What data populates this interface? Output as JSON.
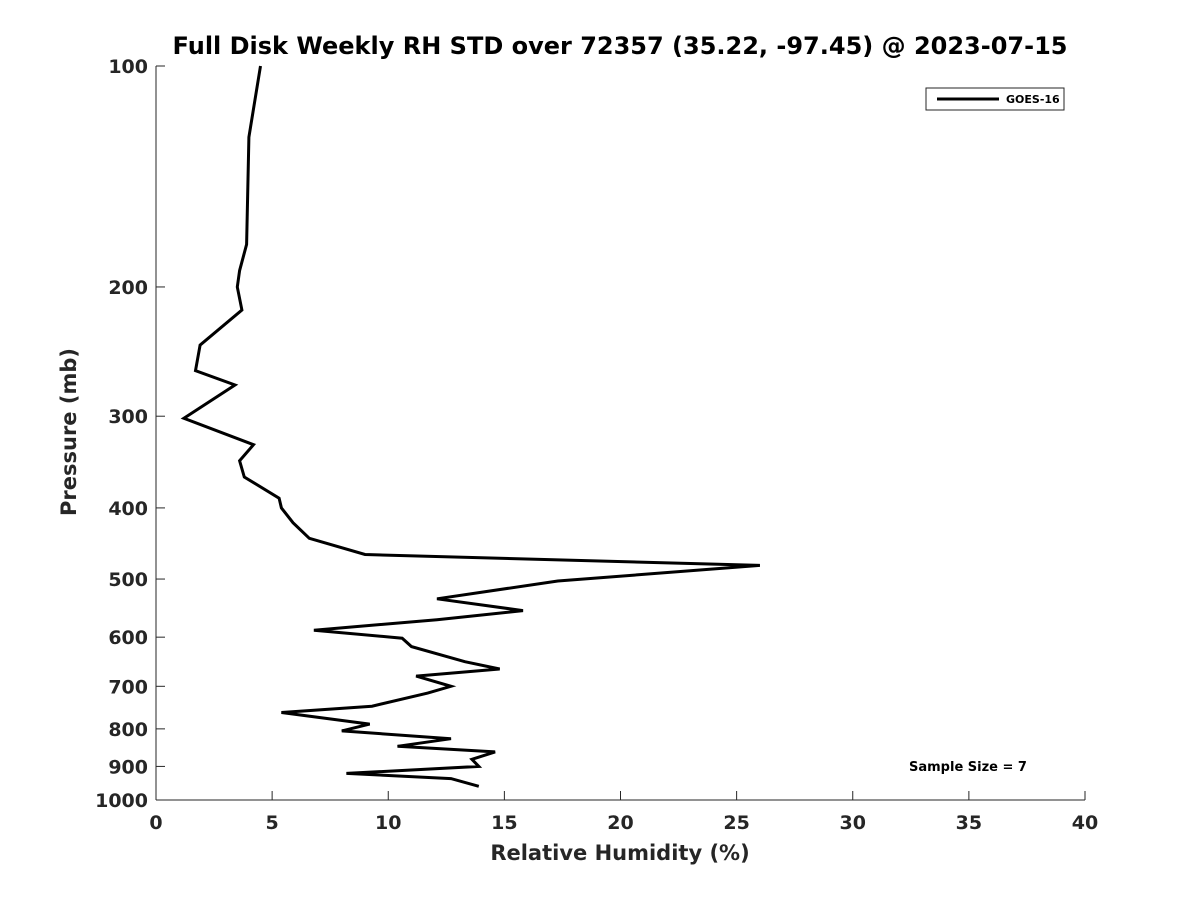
{
  "chart_data": {
    "type": "line",
    "title": "Full Disk Weekly RH STD over 72357 (35.22, -97.45) @ 2023-07-15",
    "xlabel": "Relative Humidity (%)",
    "ylabel": "Pressure (mb)",
    "xlim": [
      0,
      40
    ],
    "ylim": [
      100,
      1000
    ],
    "y_scale": "log",
    "y_reversed": true,
    "x_ticks": [
      "0",
      "5",
      "10",
      "15",
      "20",
      "25",
      "30",
      "35",
      "40"
    ],
    "y_ticks": [
      "100",
      "200",
      "300",
      "400",
      "500",
      "600",
      "700",
      "800",
      "900",
      "1000"
    ],
    "grid": false,
    "legend_position": "top-right",
    "series": [
      {
        "name": "GOES-16",
        "color": "#000000",
        "points": [
          [
            4.5,
            100
          ],
          [
            4.0,
            125
          ],
          [
            3.9,
            175
          ],
          [
            3.6,
            190
          ],
          [
            3.5,
            200
          ],
          [
            3.7,
            215
          ],
          [
            1.9,
            240
          ],
          [
            1.7,
            260
          ],
          [
            3.4,
            272
          ],
          [
            1.2,
            302
          ],
          [
            4.2,
            328
          ],
          [
            3.6,
            345
          ],
          [
            3.8,
            363
          ],
          [
            5.3,
            388
          ],
          [
            5.4,
            400
          ],
          [
            5.9,
            419
          ],
          [
            6.6,
            440
          ],
          [
            9.0,
            463
          ],
          [
            26.0,
            479
          ],
          [
            17.3,
            503
          ],
          [
            12.1,
            532
          ],
          [
            15.8,
            552
          ],
          [
            12.1,
            568
          ],
          [
            6.8,
            587
          ],
          [
            10.6,
            602
          ],
          [
            11.0,
            618
          ],
          [
            13.3,
            648
          ],
          [
            14.8,
            663
          ],
          [
            11.2,
            678
          ],
          [
            12.7,
            700
          ],
          [
            11.7,
            715
          ],
          [
            9.3,
            745
          ],
          [
            5.4,
            760
          ],
          [
            9.2,
            788
          ],
          [
            8.0,
            805
          ],
          [
            12.7,
            825
          ],
          [
            10.4,
            845
          ],
          [
            14.6,
            860
          ],
          [
            13.6,
            880
          ],
          [
            13.9,
            900
          ],
          [
            8.2,
            920
          ],
          [
            12.7,
            935
          ],
          [
            13.9,
            958
          ]
        ]
      }
    ],
    "annotations": [
      "Sample Size = 7"
    ]
  }
}
